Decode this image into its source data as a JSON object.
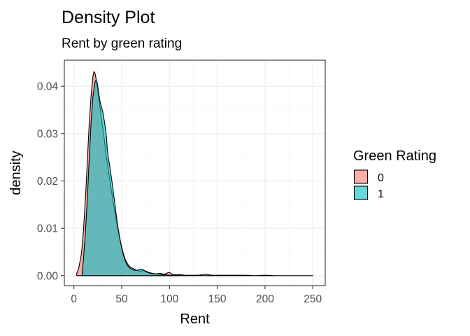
{
  "chart_data": {
    "type": "area",
    "title": "Density Plot",
    "subtitle": "Rent by green rating",
    "xlabel": "Rent",
    "ylabel": "density",
    "xlim": [
      -10,
      263
    ],
    "ylim": [
      -0.0021,
      0.0455
    ],
    "x_ticks": [
      0,
      50,
      100,
      150,
      200,
      250
    ],
    "x_tick_labels": [
      "0",
      "50",
      "100",
      "150",
      "200",
      "250"
    ],
    "y_ticks": [
      0.0,
      0.01,
      0.02,
      0.03,
      0.04
    ],
    "y_tick_labels": [
      "0.00",
      "0.01",
      "0.02",
      "0.03",
      "0.04"
    ],
    "grid": true,
    "legend": {
      "title": "Green Rating",
      "placement": "right",
      "entries": [
        {
          "label": "0",
          "color": "#F8766D"
        },
        {
          "label": "1",
          "color": "#00BFC4"
        }
      ]
    },
    "series": [
      {
        "color": "#F8766D",
        "x": [
          2.98,
          5,
          8,
          10,
          12,
          14,
          16,
          18,
          20,
          21,
          22,
          23,
          24,
          25,
          26,
          27,
          28,
          30,
          32,
          33,
          34,
          36,
          38,
          40,
          42,
          44,
          46,
          48,
          50,
          52,
          54,
          56,
          58,
          60,
          62,
          65,
          68,
          70,
          72,
          75,
          78,
          80,
          82,
          85,
          88,
          90,
          92,
          95,
          98,
          100,
          102,
          104,
          108,
          112,
          116,
          120,
          125,
          130,
          135,
          138,
          140,
          145,
          150,
          160,
          170,
          180,
          190,
          200,
          210,
          220,
          230,
          240,
          250
        ],
        "y": [
          0.0005,
          0.0015,
          0.0048,
          0.0095,
          0.016,
          0.024,
          0.032,
          0.038,
          0.0422,
          0.0431,
          0.0428,
          0.0418,
          0.0405,
          0.039,
          0.0375,
          0.036,
          0.0345,
          0.0315,
          0.0285,
          0.0268,
          0.025,
          0.0225,
          0.0195,
          0.017,
          0.0145,
          0.012,
          0.0098,
          0.0078,
          0.006,
          0.0045,
          0.0033,
          0.0025,
          0.002,
          0.0017,
          0.0015,
          0.0012,
          0.001,
          0.0009,
          0.0011,
          0.001,
          0.0007,
          0.0006,
          0.0005,
          0.0004,
          0.0004,
          0.0005,
          0.0004,
          0.0003,
          0.0006,
          0.0007,
          0.0004,
          0.0002,
          0.0002,
          0.0002,
          0.0001,
          0.0001,
          0.0001,
          0.0001,
          0.0002,
          0.0003,
          0.0002,
          0.0001,
          0.0001,
          0.0001,
          0.0001,
          0.0001,
          0.0,
          0.0001,
          0.0,
          0.0,
          0.0,
          0.0,
          0.0
        ]
      },
      {
        "color": "#00BFC4",
        "x": [
          8.5,
          10,
          12,
          14,
          16,
          18,
          20,
          22,
          23,
          24,
          25,
          26,
          27,
          28,
          29,
          30,
          32,
          34,
          35,
          36,
          38,
          40,
          42,
          44,
          46,
          48,
          50,
          52,
          54,
          56,
          58,
          60,
          62,
          65,
          68,
          70,
          72,
          75,
          78,
          80,
          85,
          90,
          95,
          100,
          105,
          110,
          115,
          120
        ],
        "y": [
          0.0,
          0.0035,
          0.009,
          0.016,
          0.0245,
          0.0325,
          0.038,
          0.0408,
          0.0413,
          0.041,
          0.04,
          0.0385,
          0.0372,
          0.0362,
          0.0355,
          0.0348,
          0.0325,
          0.0295,
          0.0265,
          0.025,
          0.0225,
          0.0196,
          0.0165,
          0.0133,
          0.0103,
          0.008,
          0.0058,
          0.0042,
          0.003,
          0.0022,
          0.0017,
          0.0014,
          0.0012,
          0.0011,
          0.0012,
          0.0014,
          0.0013,
          0.0009,
          0.0006,
          0.0005,
          0.0004,
          0.0003,
          0.0002,
          0.0001,
          0.0001,
          0.0,
          0.0,
          0.0
        ]
      }
    ]
  }
}
